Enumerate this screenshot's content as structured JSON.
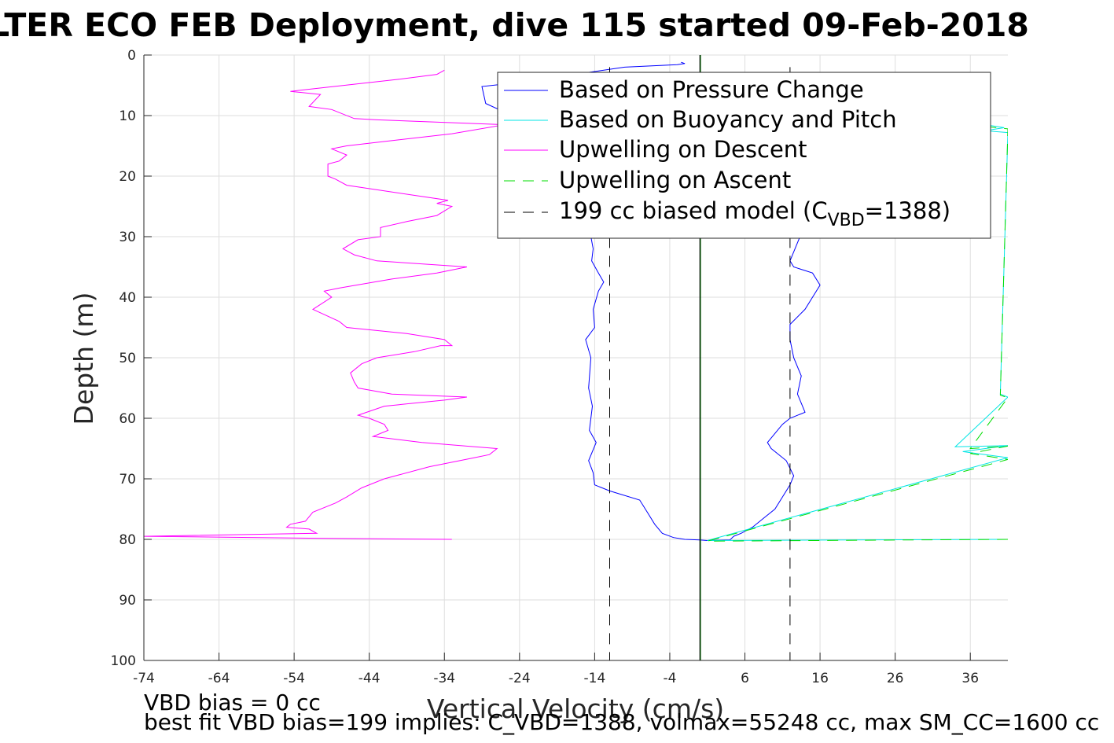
{
  "chart_data": {
    "type": "line",
    "title": "LTER ECO FEB Deployment, dive 115 started 09-Feb-2018",
    "xlabel": "Vertical Velocity (cm/s)",
    "ylabel": "Depth (m)",
    "xlim": [
      -74,
      41
    ],
    "ylim": [
      0,
      100
    ],
    "y_reversed": true,
    "grid": true,
    "xticks": [
      -74,
      -64,
      -54,
      -44,
      -34,
      -24,
      -14,
      -4,
      6,
      16,
      26,
      36
    ],
    "yticks": [
      0,
      10,
      20,
      30,
      40,
      50,
      60,
      70,
      80,
      90,
      100
    ],
    "legend": {
      "placement": "top-right",
      "entries": [
        "Based on Pressure Change",
        "Based on Buoyancy and Pitch",
        "Upwelling on Descent",
        "Upwelling on Ascent",
        "199 cc biased model (C"
      ],
      "model_subscript": "VBD",
      "model_suffix": "=1388)"
    },
    "series": [
      {
        "key": "pressure_descent",
        "color": "#0000ff",
        "style": "solid",
        "points": [
          [
            -2.5,
            1.2
          ],
          [
            -2,
            1.4
          ],
          [
            -3,
            1.6
          ],
          [
            -10,
            2
          ],
          [
            -24,
            4.5
          ],
          [
            -29,
            5.2
          ],
          [
            -28.5,
            8
          ],
          [
            -25,
            10
          ],
          [
            -24,
            11
          ],
          [
            -25,
            12
          ],
          [
            -22,
            13
          ],
          [
            -18,
            18
          ],
          [
            -15.5,
            24
          ],
          [
            -14.5,
            30
          ],
          [
            -14.2,
            32
          ],
          [
            -14.4,
            34
          ],
          [
            -13.5,
            36
          ],
          [
            -12.8,
            37.5
          ],
          [
            -13.5,
            39
          ],
          [
            -14.2,
            42
          ],
          [
            -14,
            45
          ],
          [
            -15.2,
            47
          ],
          [
            -14.5,
            50
          ],
          [
            -14.8,
            55
          ],
          [
            -14.3,
            58
          ],
          [
            -14.7,
            62
          ],
          [
            -13.8,
            64
          ],
          [
            -14.8,
            67
          ],
          [
            -14.2,
            69
          ],
          [
            -14,
            71
          ],
          [
            -12,
            72
          ],
          [
            -8,
            73.5
          ],
          [
            -7,
            75.5
          ],
          [
            -6,
            77.5
          ],
          [
            -5,
            79
          ],
          [
            -3.5,
            79.7
          ],
          [
            -2,
            80
          ],
          [
            0,
            80.1
          ],
          [
            1,
            80.2
          ]
        ]
      },
      {
        "key": "pressure_ascent",
        "color": "#0000ff",
        "style": "solid",
        "points": [
          [
            1,
            80.2
          ],
          [
            4,
            80.1
          ],
          [
            4.5,
            79.5
          ],
          [
            5.5,
            79
          ],
          [
            7,
            78
          ],
          [
            8.5,
            76.5
          ],
          [
            10,
            75
          ],
          [
            11,
            73
          ],
          [
            12,
            71
          ],
          [
            12.5,
            69.5
          ],
          [
            11.5,
            67
          ],
          [
            9.5,
            65
          ],
          [
            9,
            64
          ],
          [
            11,
            61
          ],
          [
            12,
            60
          ],
          [
            14,
            59
          ],
          [
            13,
            56
          ],
          [
            13.5,
            53
          ],
          [
            12.5,
            50
          ],
          [
            12,
            47
          ],
          [
            12,
            44.5
          ],
          [
            14,
            42
          ],
          [
            16,
            38
          ],
          [
            15,
            36
          ],
          [
            12.5,
            35
          ],
          [
            12,
            34
          ],
          [
            13,
            31
          ],
          [
            14,
            28
          ],
          [
            14,
            25
          ]
        ]
      },
      {
        "key": "buoyancy_pitch",
        "color": "#00e5e5",
        "style": "solid",
        "points": [
          [
            38,
            11.5
          ],
          [
            40.5,
            12
          ],
          [
            38,
            12.5
          ],
          [
            41,
            12.8
          ],
          [
            40,
            56
          ],
          [
            41,
            56.5
          ],
          [
            34,
            64.7
          ],
          [
            41,
            64.5
          ],
          [
            35,
            65.5
          ],
          [
            41,
            66.5
          ],
          [
            1,
            80.2
          ],
          [
            41,
            80
          ]
        ]
      },
      {
        "key": "upwelling_descent",
        "color": "#ff00ff",
        "style": "solid",
        "points": [
          [
            -34,
            2.5
          ],
          [
            -35,
            3.2
          ],
          [
            -40,
            4
          ],
          [
            -54.5,
            6
          ],
          [
            -50.5,
            6.5
          ],
          [
            -52,
            8.5
          ],
          [
            -49,
            9
          ],
          [
            -46,
            10.5
          ],
          [
            -43,
            10.7
          ],
          [
            -26,
            11.5
          ],
          [
            -33,
            13
          ],
          [
            -40,
            14
          ],
          [
            -47,
            15
          ],
          [
            -49,
            15.5
          ],
          [
            -47,
            16.5
          ],
          [
            -48,
            17.5
          ],
          [
            -49.5,
            18
          ],
          [
            -49.5,
            20
          ],
          [
            -48.5,
            20.5
          ],
          [
            -47,
            21.5
          ],
          [
            -33.5,
            24
          ],
          [
            -35,
            24.5
          ],
          [
            -33,
            25
          ],
          [
            -35,
            26.5
          ],
          [
            -39,
            27.5
          ],
          [
            -42.5,
            28.5
          ],
          [
            -42.5,
            30
          ],
          [
            -45.5,
            30.5
          ],
          [
            -47.5,
            32
          ],
          [
            -46,
            33
          ],
          [
            -43,
            34
          ],
          [
            -31,
            35
          ],
          [
            -35,
            36
          ],
          [
            -41,
            37
          ],
          [
            -48,
            38.5
          ],
          [
            -50,
            39
          ],
          [
            -49,
            40
          ],
          [
            -51.5,
            42
          ],
          [
            -48,
            44
          ],
          [
            -47,
            45
          ],
          [
            -39,
            46
          ],
          [
            -34,
            47
          ],
          [
            -33,
            48
          ],
          [
            -34.5,
            48
          ],
          [
            -38,
            49
          ],
          [
            -43,
            50
          ],
          [
            -45,
            51
          ],
          [
            -46.5,
            52.5
          ],
          [
            -46,
            54
          ],
          [
            -45.5,
            55
          ],
          [
            -41,
            56
          ],
          [
            -31,
            56.5
          ],
          [
            -34,
            57
          ],
          [
            -42,
            58
          ],
          [
            -45.5,
            59.5
          ],
          [
            -44,
            60
          ],
          [
            -42,
            61
          ],
          [
            -41.5,
            62
          ],
          [
            -43.5,
            63
          ],
          [
            -37,
            64
          ],
          [
            -27,
            65
          ],
          [
            -28,
            66
          ],
          [
            -30,
            66.5
          ],
          [
            -36,
            68
          ],
          [
            -42,
            70
          ],
          [
            -45,
            71.5
          ],
          [
            -47,
            73
          ],
          [
            -48.5,
            74
          ],
          [
            -51.5,
            75.5
          ],
          [
            -52.5,
            77
          ],
          [
            -54.5,
            77.5
          ],
          [
            -55,
            78
          ],
          [
            -52,
            78.3
          ],
          [
            -51,
            79
          ],
          [
            -74,
            79.5
          ],
          [
            -52,
            79.8
          ],
          [
            -33,
            80
          ]
        ]
      },
      {
        "key": "upwelling_ascent",
        "color": "#00dd00",
        "style": "dashed",
        "points": [
          [
            38,
            11.8
          ],
          [
            41,
            12.2
          ],
          [
            40,
            56.2
          ],
          [
            41,
            56.6
          ],
          [
            36,
            65
          ],
          [
            41,
            64.6
          ],
          [
            36,
            65.8
          ],
          [
            41,
            66.8
          ],
          [
            1,
            80.3
          ],
          [
            41,
            80
          ]
        ]
      },
      {
        "key": "model_left",
        "color": "#000000",
        "style": "dashed",
        "points": [
          [
            -12,
            2
          ],
          [
            -12,
            100
          ]
        ]
      },
      {
        "key": "model_right",
        "color": "#000000",
        "style": "dashed",
        "points": [
          [
            12,
            2
          ],
          [
            12,
            100
          ]
        ]
      },
      {
        "key": "zero_line",
        "color": "#000000",
        "style": "solid",
        "points": [
          [
            0,
            0
          ],
          [
            0,
            100
          ]
        ]
      },
      {
        "key": "zero_line_green",
        "color": "#006600",
        "style": "solid",
        "points": [
          [
            0.1,
            0
          ],
          [
            0.1,
            100
          ]
        ]
      }
    ]
  },
  "footer": {
    "line1": "VBD bias = 0 cc",
    "line2": "best fit VBD bias=199 implies: C_VBD=1388, volmax=55248 cc, max SM_CC=1600 cc"
  }
}
